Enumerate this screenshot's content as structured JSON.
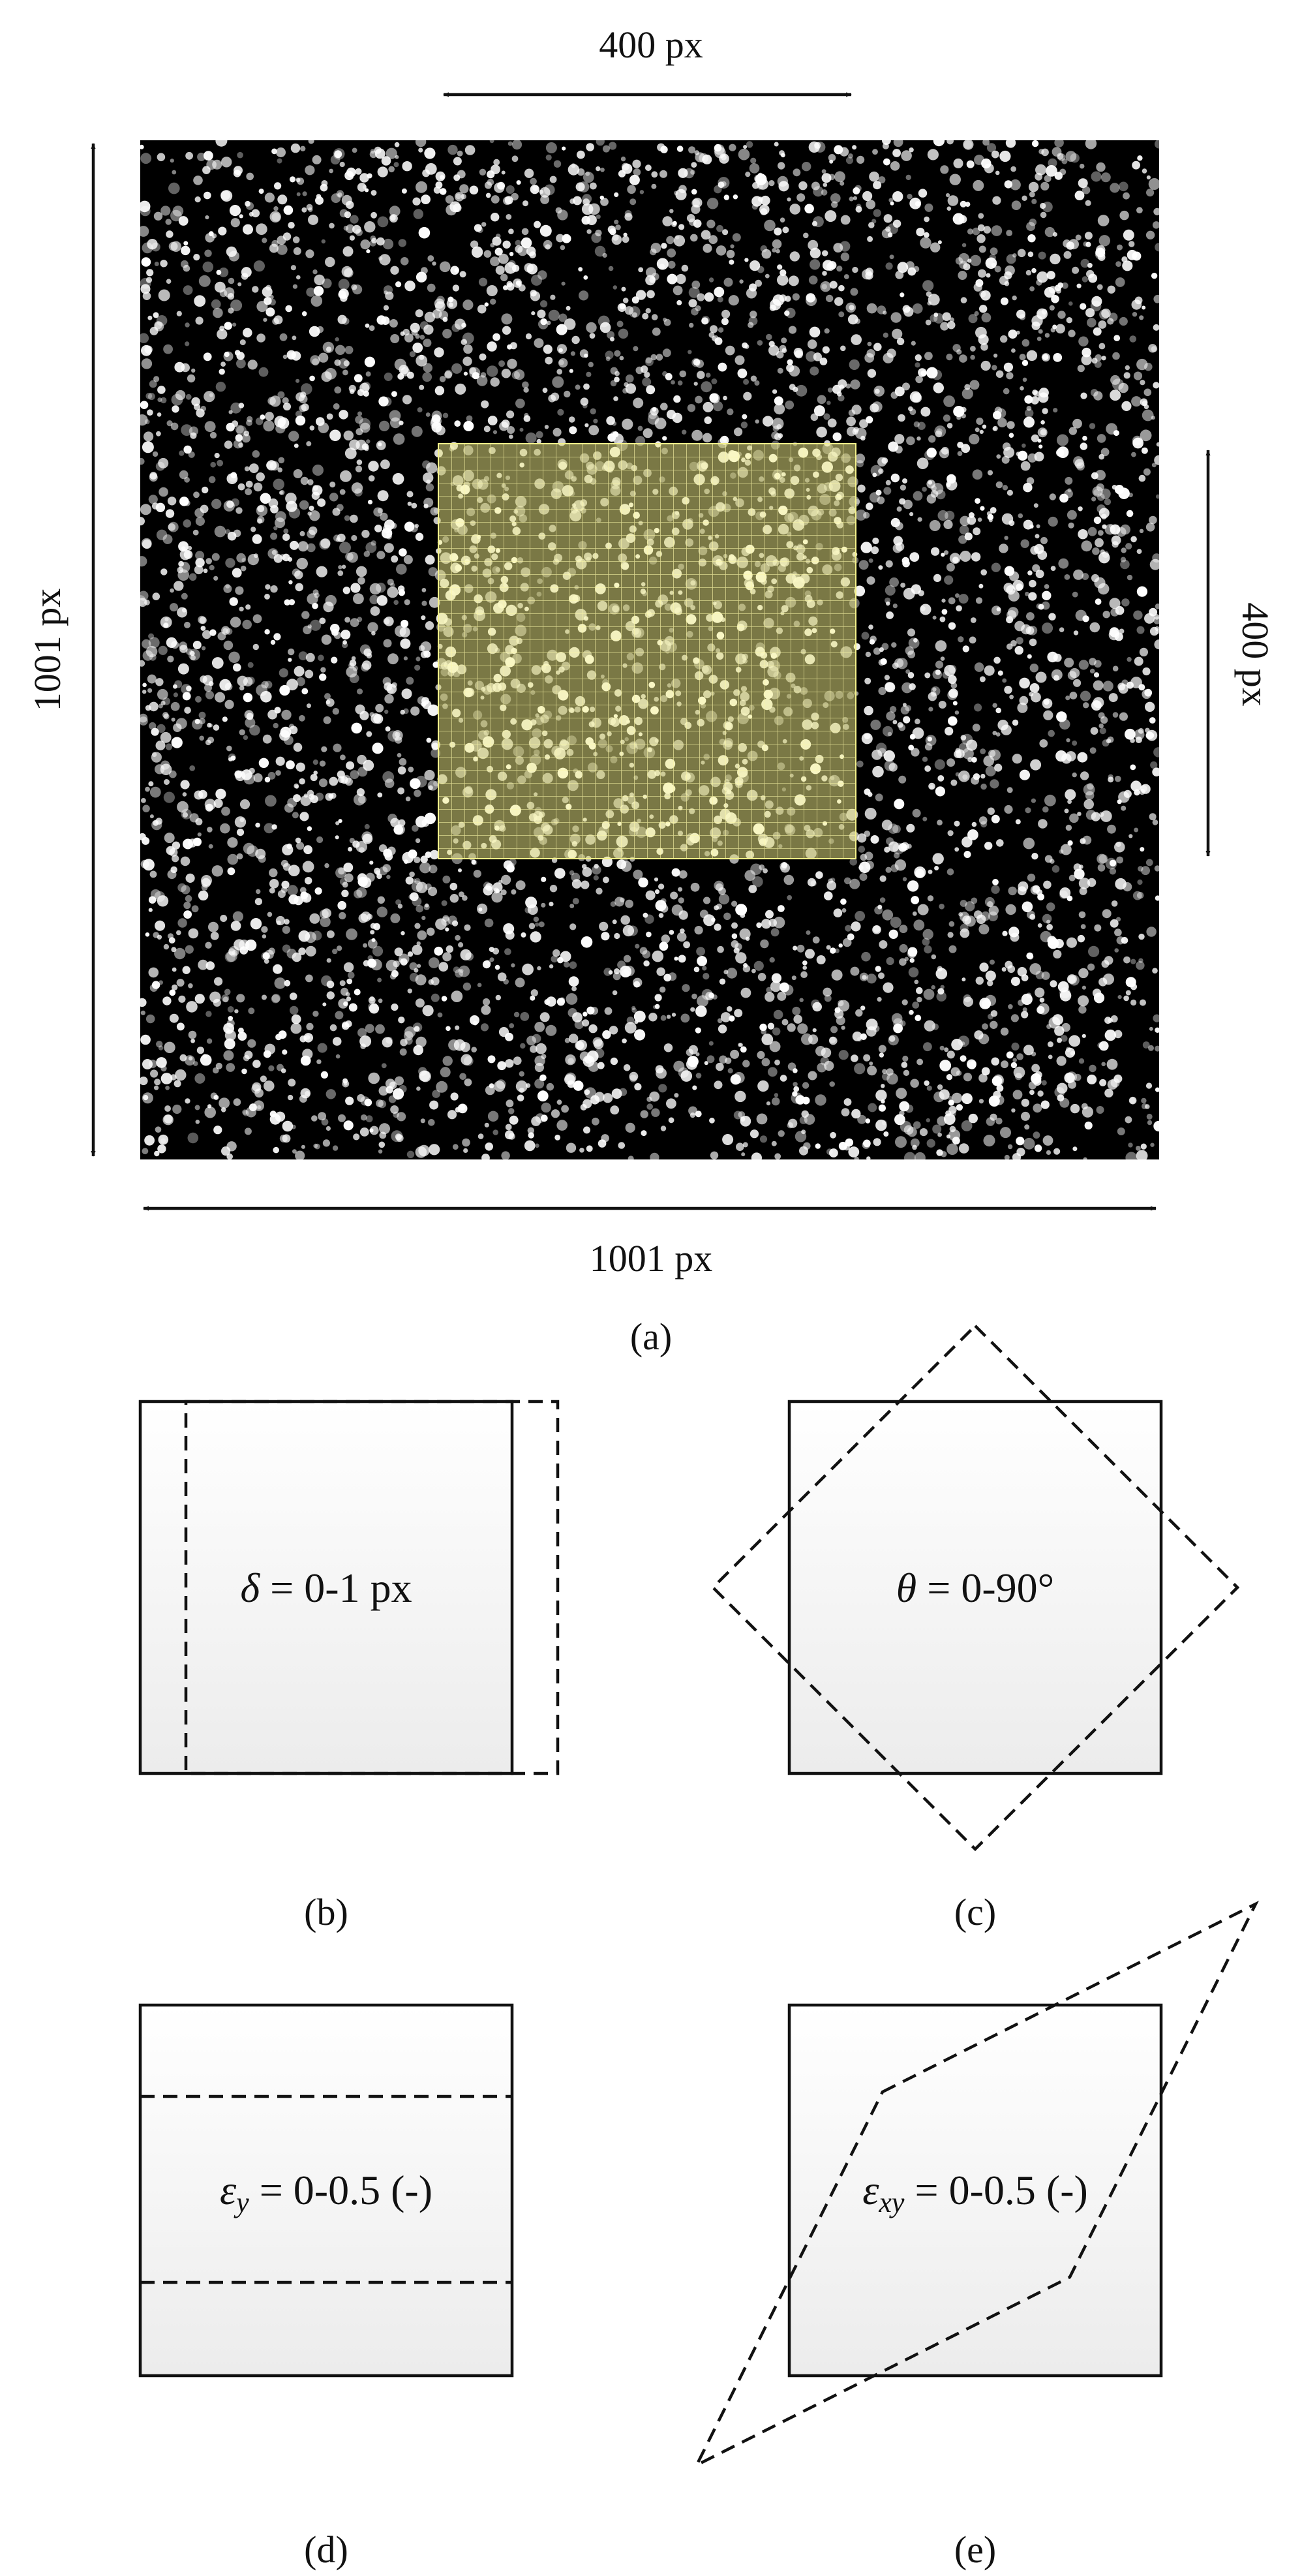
{
  "panel_a": {
    "top_dim_label": "400 px",
    "left_dim_label": "1001 px",
    "right_dim_label": "400 px",
    "bottom_dim_label": "1001 px",
    "caption": "(a)",
    "speckle_color": "#ffffff",
    "background_color": "#000000",
    "subset_color": "#f3f08a"
  },
  "panel_b": {
    "symbol": "δ",
    "text": " = 0-1 px",
    "caption": "(b)"
  },
  "panel_c": {
    "symbol": "θ",
    "text": " = 0-90°",
    "caption": "(c)"
  },
  "panel_d": {
    "symbol": "ε",
    "subscript": "y",
    "text": " = 0-0.5 (-)",
    "caption": "(d)"
  },
  "panel_e": {
    "symbol": "ε",
    "subscript": "xy",
    "text": " = 0-0.5 (-)",
    "caption": "(e)"
  }
}
